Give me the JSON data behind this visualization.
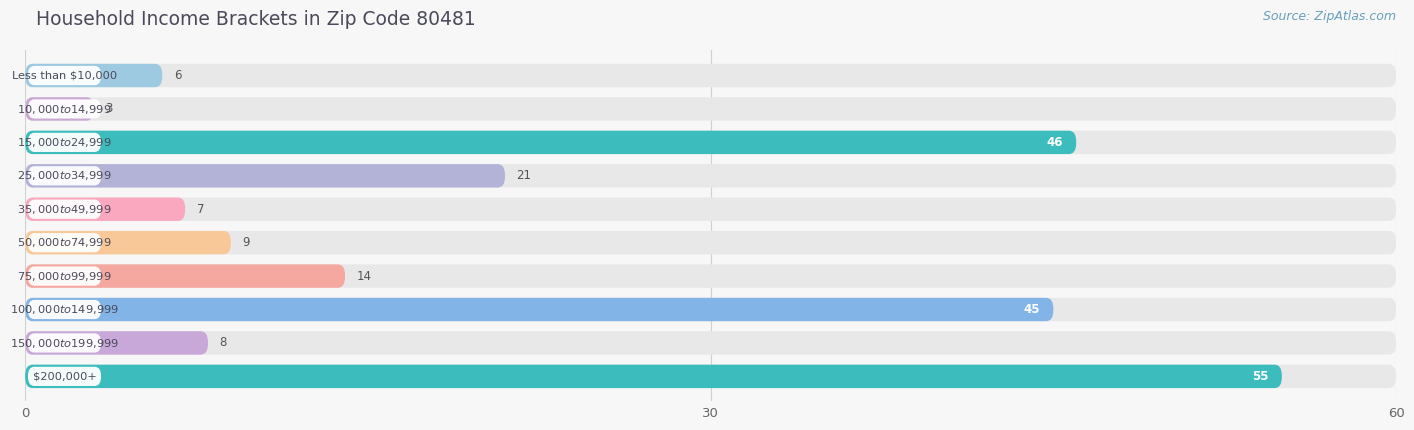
{
  "title": "Household Income Brackets in Zip Code 80481",
  "source": "Source: ZipAtlas.com",
  "categories": [
    "Less than $10,000",
    "$10,000 to $14,999",
    "$15,000 to $24,999",
    "$25,000 to $34,999",
    "$35,000 to $49,999",
    "$50,000 to $74,999",
    "$75,000 to $99,999",
    "$100,000 to $149,999",
    "$150,000 to $199,999",
    "$200,000+"
  ],
  "values": [
    6,
    3,
    46,
    21,
    7,
    9,
    14,
    45,
    8,
    55
  ],
  "bar_colors": [
    "#9ecae1",
    "#c9a8d4",
    "#3cbcbc",
    "#b3b3d8",
    "#f9a8c0",
    "#f9c898",
    "#f4a8a0",
    "#82b4e8",
    "#c8a8d8",
    "#3cbcbc"
  ],
  "bg_color": "#f7f7f7",
  "bar_bg_color": "#e8e8e8",
  "xlim": [
    0,
    60
  ],
  "xticks": [
    0,
    30,
    60
  ],
  "title_color": "#4a4a5a",
  "label_color": "#4a4a5a",
  "value_color_outside": "#555555",
  "value_color_inside": "#ffffff",
  "source_color": "#6a9fba",
  "grid_color": "#d0d0d0"
}
